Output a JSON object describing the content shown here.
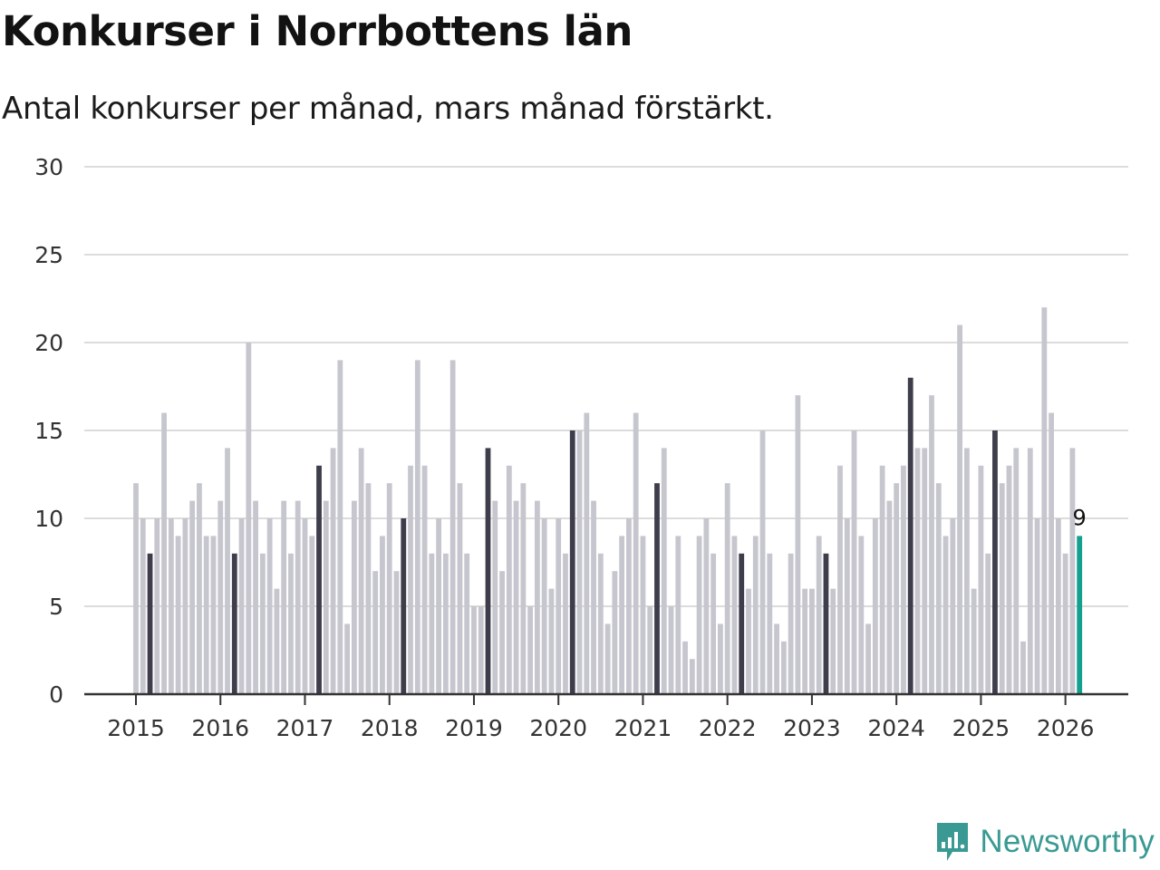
{
  "header": {
    "title": "Konkurser i Norrbottens län",
    "subtitle": "Antal konkurser per månad, mars månad förstärkt."
  },
  "brand": {
    "name": "Newsworthy",
    "color": "#3a9a93"
  },
  "colors": {
    "regular": "#c6c6ce",
    "march": "#3e3d4b",
    "latest": "#13a08e",
    "grid": "#dcdcdc",
    "axis": "#333333"
  },
  "chart_data": {
    "type": "bar",
    "title": "Konkurser i Norrbottens län",
    "subtitle": "Antal konkurser per månad, mars månad förstärkt.",
    "xlabel": "",
    "ylabel": "",
    "ylim": [
      0,
      30
    ],
    "yticks": [
      0,
      5,
      10,
      15,
      20,
      25,
      30
    ],
    "xticks": [
      "2015",
      "2016",
      "2017",
      "2018",
      "2019",
      "2020",
      "2021",
      "2022",
      "2023",
      "2024",
      "2025",
      "2026"
    ],
    "start": "2015-01",
    "highlight_month": "mars",
    "latest_label": "9",
    "values": [
      12,
      10,
      8,
      10,
      16,
      10,
      9,
      10,
      11,
      12,
      9,
      9,
      11,
      14,
      8,
      10,
      20,
      11,
      8,
      10,
      6,
      11,
      8,
      11,
      10,
      9,
      13,
      11,
      14,
      19,
      4,
      11,
      14,
      12,
      7,
      9,
      12,
      7,
      10,
      13,
      19,
      13,
      8,
      10,
      8,
      19,
      12,
      8,
      5,
      5,
      14,
      11,
      7,
      13,
      11,
      12,
      5,
      11,
      10,
      6,
      10,
      8,
      15,
      15,
      16,
      11,
      8,
      4,
      7,
      9,
      10,
      16,
      9,
      5,
      12,
      14,
      5,
      9,
      3,
      2,
      9,
      10,
      8,
      4,
      12,
      9,
      8,
      6,
      9,
      15,
      8,
      4,
      3,
      8,
      17,
      6,
      6,
      9,
      8,
      6,
      13,
      10,
      15,
      9,
      4,
      10,
      13,
      11,
      12,
      13,
      18,
      14,
      14,
      17,
      12,
      9,
      10,
      21,
      14,
      6,
      13,
      8,
      15,
      12,
      13,
      14,
      3,
      14,
      10,
      22,
      16,
      10,
      8,
      14,
      9
    ]
  }
}
